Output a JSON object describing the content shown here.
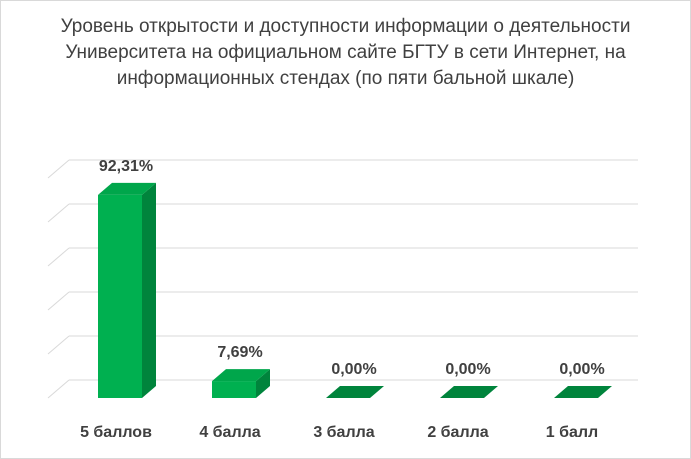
{
  "chart_data": {
    "type": "bar",
    "title": "Уровень открытости и доступности информации о деятельности Университета на официальном сайте БГТУ в сети Интернет, на информационных стендах (по пяти бальной шкале)",
    "categories": [
      "5 баллов",
      "4 балла",
      "3  балла",
      "2 балла",
      "1 балл"
    ],
    "values": [
      92.31,
      7.69,
      0.0,
      0.0,
      0.0
    ],
    "data_labels": [
      "92,31%",
      "7,69%",
      "0,00%",
      "0,00%",
      "0,00%"
    ],
    "unit": "%",
    "ylim": [
      0,
      100
    ],
    "grid": true,
    "legend": "none",
    "three_d": true,
    "colors": {
      "front": "#00b050",
      "top": "#00a64b",
      "side": "#00843c",
      "grid": "#d9d9d9",
      "text": "#404040",
      "label": "#404040"
    }
  }
}
